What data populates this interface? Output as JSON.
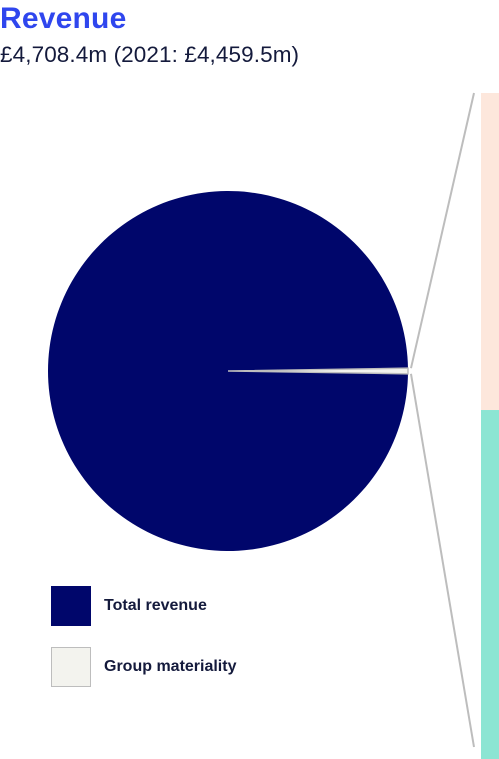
{
  "header": {
    "title": "Revenue",
    "subtitle": "£4,708.4m (2021: £4,459.5m)"
  },
  "colors": {
    "title": "#2f46ee",
    "total_revenue": "#00066b",
    "group_materiality": "#f3f3ee",
    "materiality_border": "#bdbdbd",
    "breakdown_top": "#fde7dc",
    "breakdown_bottom": "#8ce5d3",
    "connector_lines": "#bdbdbd"
  },
  "chart_data": {
    "type": "pie",
    "title": "Revenue",
    "subtitle": "£4,708.4m (2021: £4,459.5m)",
    "slices": [
      {
        "label": "Total revenue",
        "value": 99.5,
        "color": "#00066b"
      },
      {
        "label": "Group materiality",
        "value": 0.5,
        "color": "#f3f3ee"
      }
    ],
    "exploded_breakdown": {
      "of": "Group materiality",
      "segments": [
        {
          "value": 47.6,
          "color": "#fde7dc"
        },
        {
          "value": 52.4,
          "color": "#8ce5d3"
        }
      ]
    },
    "legend": {
      "placement": "bottom-left",
      "entries": [
        {
          "label": "Total revenue",
          "color": "#00066b"
        },
        {
          "label": "Group materiality",
          "color": "#f3f3ee"
        }
      ]
    }
  }
}
